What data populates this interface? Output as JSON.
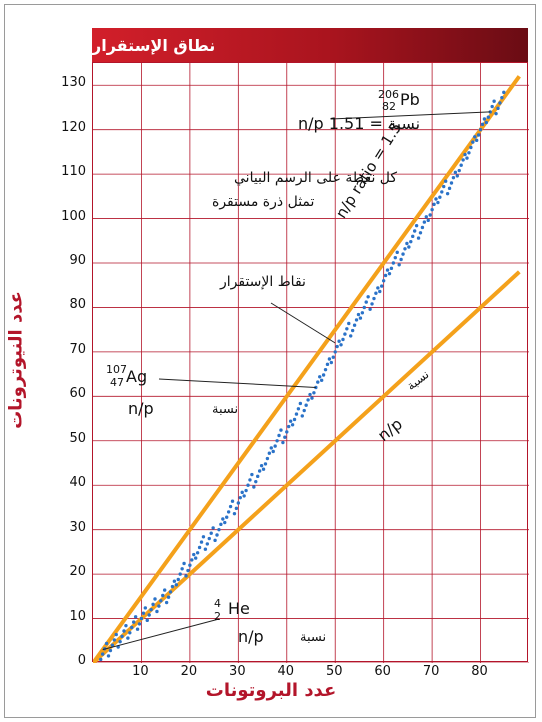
{
  "banner": {
    "title": "نطاق الإستقرار"
  },
  "chart_data": {
    "type": "scatter",
    "xlabel": "عدد البروتونات",
    "ylabel": "عدد النيوترونات",
    "xlim": [
      0,
      90
    ],
    "ylim": [
      0,
      135
    ],
    "xticks": [
      10,
      20,
      30,
      40,
      50,
      60,
      70,
      80
    ],
    "yticks": [
      0,
      10,
      20,
      30,
      40,
      50,
      60,
      70,
      80,
      90,
      100,
      110,
      120,
      130
    ],
    "grid": true,
    "series": [
      {
        "style": "line",
        "color": "#f4a11b",
        "x": [
          0,
          88
        ],
        "y": [
          0,
          132
        ]
      },
      {
        "style": "line",
        "color": "#f4a11b",
        "x": [
          0,
          88
        ],
        "y": [
          0,
          88
        ]
      },
      {
        "style": "points",
        "color": "#2a72c8",
        "description_band": true,
        "x": [
          2,
          4,
          6,
          8,
          10,
          12,
          14,
          16,
          18,
          20,
          22,
          24,
          26,
          28,
          30,
          32,
          34,
          36,
          38,
          40,
          42,
          44,
          46,
          48,
          50,
          52,
          54,
          56,
          58,
          60,
          62,
          64,
          66,
          68,
          70,
          72,
          74,
          76,
          78,
          80,
          82,
          84
        ],
        "y": [
          2,
          4,
          6,
          8,
          10,
          12,
          14,
          16,
          20,
          22,
          26,
          28,
          30,
          34,
          36,
          40,
          42,
          46,
          50,
          52,
          56,
          58,
          62,
          66,
          70,
          74,
          76,
          80,
          82,
          86,
          90,
          92,
          96,
          98,
          102,
          106,
          108,
          112,
          116,
          120,
          124,
          126
        ]
      }
    ],
    "annotations": {
      "pb": {
        "mass": "206",
        "atomic": "82",
        "symbol": "Pb",
        "ratio_text": "n/p نسبة = 1.51"
      },
      "ag": {
        "mass": "107",
        "atomic": "47",
        "symbol": "Ag",
        "ratio_text": "n/p",
        "ratio_word": "نسبة"
      },
      "he": {
        "mass": "4",
        "atomic": "2",
        "symbol": "He",
        "ratio_text": "n/p",
        "ratio_word": "نسبة"
      },
      "line_upper": "n/p ratio = 1.5",
      "line_lower_word": "نسبة",
      "line_lower_ratio": "n/p",
      "note_line1": "كل نقطة على الرسم البياني",
      "note_line2": "تمثل ذرة مستقرة",
      "stability_points": "نقاط الإستقرار"
    }
  }
}
